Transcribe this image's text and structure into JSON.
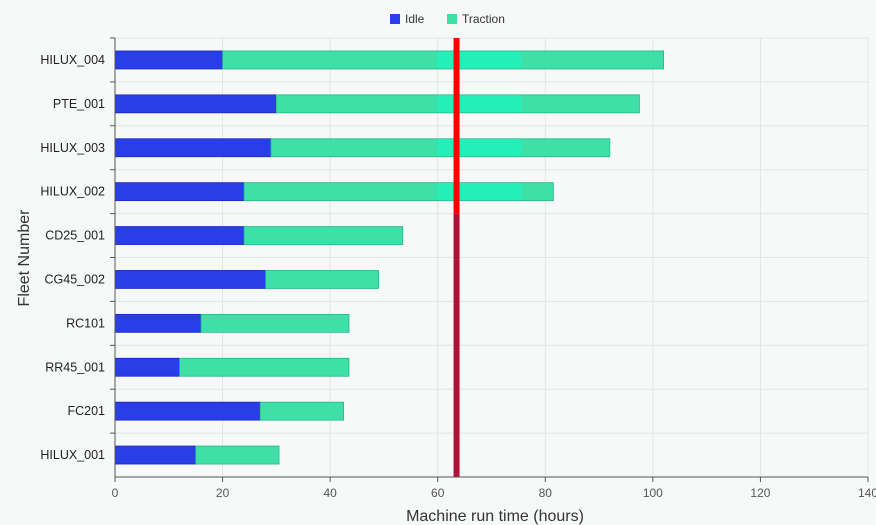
{
  "chart_data": {
    "type": "bar",
    "orientation": "horizontal",
    "stacked": true,
    "title": "",
    "xlabel": "Machine run time (hours)",
    "ylabel": "Fleet Number",
    "xlim": [
      0,
      140
    ],
    "xticks": [
      0,
      20,
      40,
      60,
      80,
      100,
      120,
      140
    ],
    "xtick_labels": [
      "0",
      "20",
      "40",
      "60",
      "80",
      "100",
      "120",
      "140"
    ],
    "grid": true,
    "legend_position": "top-center",
    "categories": [
      "HILUX_004",
      "PTE_001",
      "HILUX_003",
      "HILUX_002",
      "CD25_001",
      "CG45_002",
      "RC101",
      "RR45_001",
      "FC201",
      "HILUX_001"
    ],
    "series": [
      {
        "name": "Idle",
        "color": "#2a3ee8",
        "values": [
          20,
          30,
          29,
          24,
          24,
          28,
          16,
          12,
          27,
          15
        ]
      },
      {
        "name": "Traction",
        "color": "#3ee0a8",
        "values": [
          82,
          67.5,
          63,
          57.5,
          29.5,
          21,
          27.5,
          31.5,
          15.5,
          15.5
        ]
      }
    ],
    "highlight_band": {
      "x_start": 60,
      "x_end": 75.5,
      "rows": [
        0,
        1,
        2,
        3
      ],
      "color": "#22f0b8"
    },
    "threshold_line": {
      "x": 63.5,
      "color_top": "#ff0000",
      "color_bottom": "#b0103a",
      "split_after_row": 3
    }
  }
}
